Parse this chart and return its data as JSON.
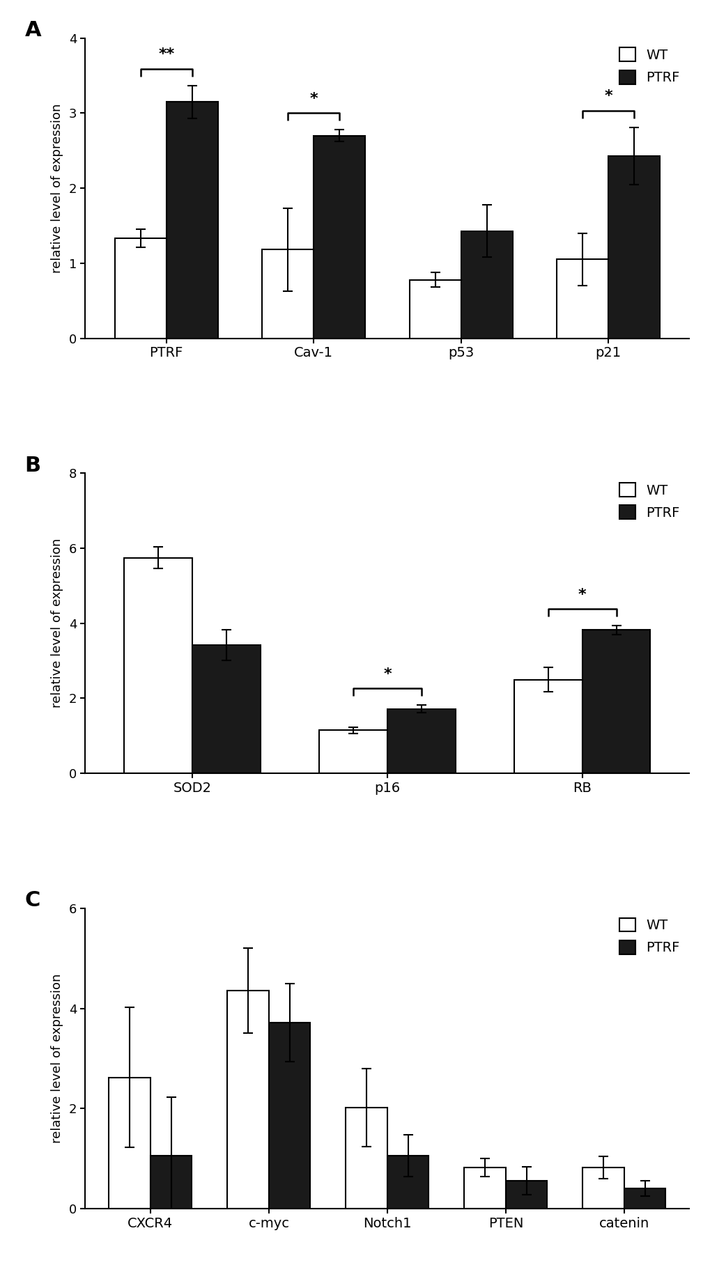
{
  "panel_A": {
    "categories": [
      "PTRF",
      "Cav-1",
      "p53",
      "p21"
    ],
    "wt_values": [
      1.33,
      1.18,
      0.78,
      1.05
    ],
    "ptrf_values": [
      3.15,
      2.7,
      1.43,
      2.43
    ],
    "wt_errors": [
      0.12,
      0.55,
      0.1,
      0.35
    ],
    "ptrf_errors": [
      0.22,
      0.08,
      0.35,
      0.38
    ],
    "significance": [
      "**",
      "*",
      null,
      "*"
    ],
    "ylim": [
      0,
      4
    ],
    "yticks": [
      0,
      1,
      2,
      3,
      4
    ],
    "ylabel": "relative level of expression"
  },
  "panel_B": {
    "categories": [
      "SOD2",
      "p16",
      "RB"
    ],
    "wt_values": [
      5.75,
      1.15,
      2.5
    ],
    "ptrf_values": [
      3.42,
      1.72,
      3.82
    ],
    "wt_errors": [
      0.28,
      0.08,
      0.32
    ],
    "ptrf_errors": [
      0.4,
      0.1,
      0.12
    ],
    "significance": [
      null,
      "*",
      "*"
    ],
    "ylim": [
      0,
      8
    ],
    "yticks": [
      0,
      2,
      4,
      6,
      8
    ],
    "ylabel": "relative level of expression"
  },
  "panel_C": {
    "categories": [
      "CXCR4",
      "c-myc",
      "Notch1",
      "PTEN",
      "catenin"
    ],
    "wt_values": [
      2.62,
      4.35,
      2.02,
      0.82,
      0.82
    ],
    "ptrf_values": [
      1.05,
      3.72,
      1.05,
      0.55,
      0.4
    ],
    "wt_errors": [
      1.4,
      0.85,
      0.78,
      0.18,
      0.22
    ],
    "ptrf_errors": [
      1.18,
      0.78,
      0.42,
      0.28,
      0.15
    ],
    "significance": [
      null,
      null,
      null,
      null,
      null
    ],
    "ylim": [
      0,
      6
    ],
    "yticks": [
      0,
      2,
      4,
      6
    ],
    "ylabel": "relative level of expression"
  },
  "bar_width": 0.35,
  "wt_color": "#ffffff",
  "ptrf_color": "#1a1a1a",
  "edge_color": "#000000",
  "bracket_color": "#000000",
  "sig_text_color": "#000000",
  "label_color": "#000000",
  "panel_labels": [
    "A",
    "B",
    "C"
  ],
  "legend_wt": "WT",
  "legend_ptrf": "PTRF",
  "fig_width": 10.2,
  "fig_height": 18.26,
  "font_size": 14,
  "axis_font_size": 13,
  "tick_font_size": 13,
  "legend_font_size": 14,
  "panel_label_font_size": 22
}
